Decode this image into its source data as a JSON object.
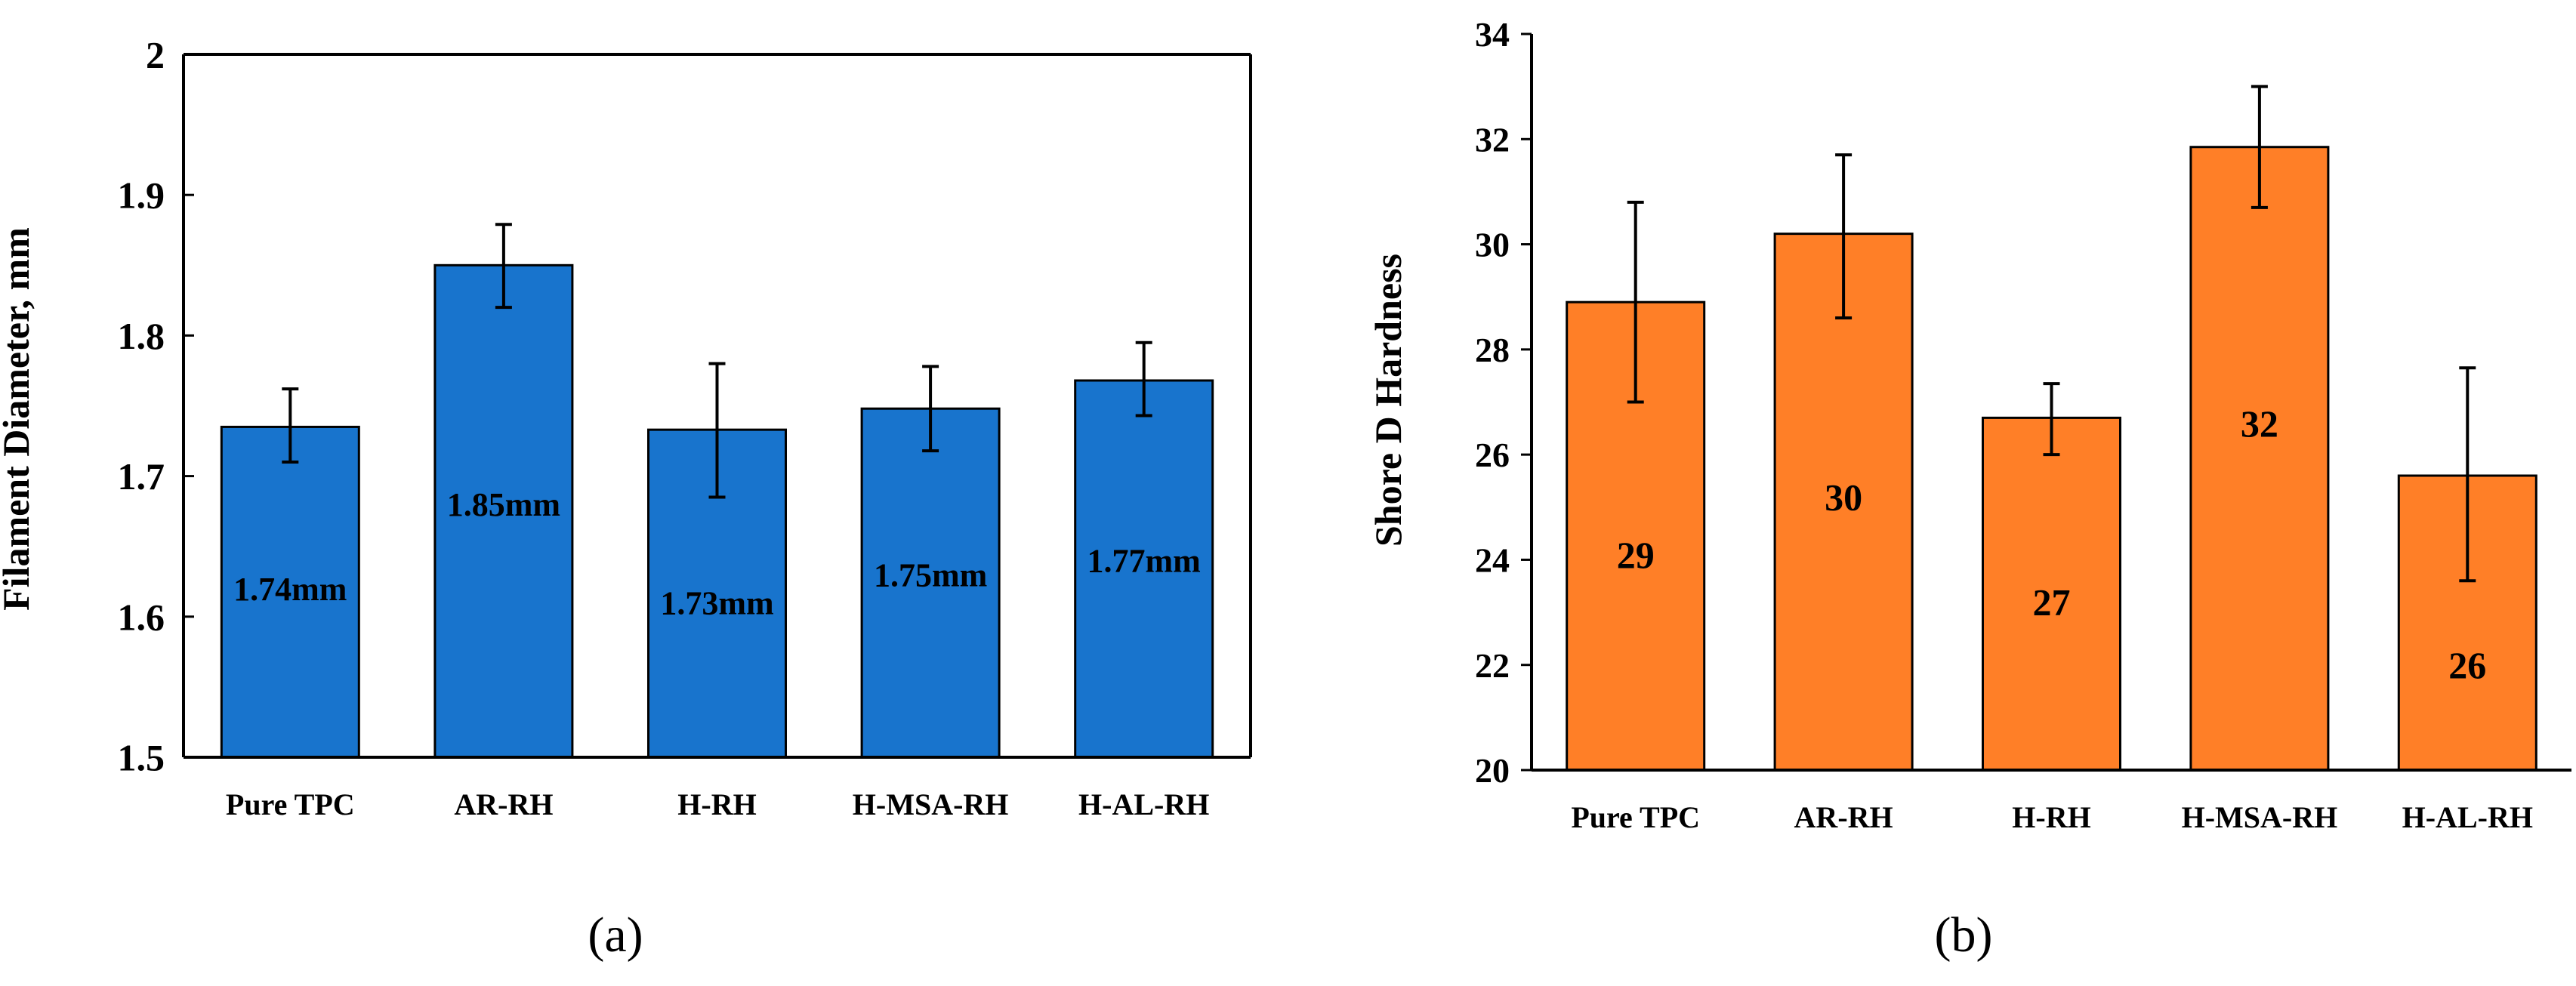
{
  "chart_data": [
    {
      "type": "bar",
      "panel_label": "(a)",
      "ylabel": "Filament Diameter, mm",
      "ylim": [
        1.5,
        2.0
      ],
      "ytick_step": 0.1,
      "yticks": [
        "1.5",
        "1.6",
        "1.7",
        "1.8",
        "1.9",
        "2"
      ],
      "categories": [
        "Pure TPC",
        "AR-RH",
        "H-RH",
        "H-MSA-RH",
        "H-AL-RH"
      ],
      "values": [
        1.735,
        1.85,
        1.733,
        1.748,
        1.768
      ],
      "error_low": [
        1.71,
        1.82,
        1.685,
        1.718,
        1.743
      ],
      "error_high": [
        1.762,
        1.879,
        1.78,
        1.778,
        1.795
      ],
      "data_labels": [
        "1.74mm",
        "1.85mm",
        "1.73mm",
        "1.75mm",
        "1.77mm"
      ],
      "label_values": [
        1.62,
        1.68,
        1.61,
        1.63,
        1.64
      ],
      "bar_color": "#1874CD",
      "grid": false
    },
    {
      "type": "bar",
      "panel_label": "(b)",
      "ylabel": "Shore D Hardness",
      "ylim": [
        20,
        34
      ],
      "ytick_step": 2,
      "yticks": [
        "20",
        "22",
        "24",
        "26",
        "28",
        "30",
        "32",
        "34"
      ],
      "categories": [
        "Pure TPC",
        "AR-RH",
        "H-RH",
        "H-MSA-RH",
        "H-AL-RH"
      ],
      "values": [
        28.9,
        30.2,
        26.7,
        31.85,
        25.6
      ],
      "error_low": [
        27.0,
        28.6,
        26.0,
        30.7,
        23.6
      ],
      "error_high": [
        30.8,
        31.7,
        27.35,
        33.0,
        27.65
      ],
      "data_labels": [
        "29",
        "30",
        "27",
        "32",
        "26"
      ],
      "label_values": [
        24.1,
        25.2,
        23.2,
        26.6,
        22.0
      ],
      "bar_color": "#FF7F27",
      "grid": false
    }
  ]
}
